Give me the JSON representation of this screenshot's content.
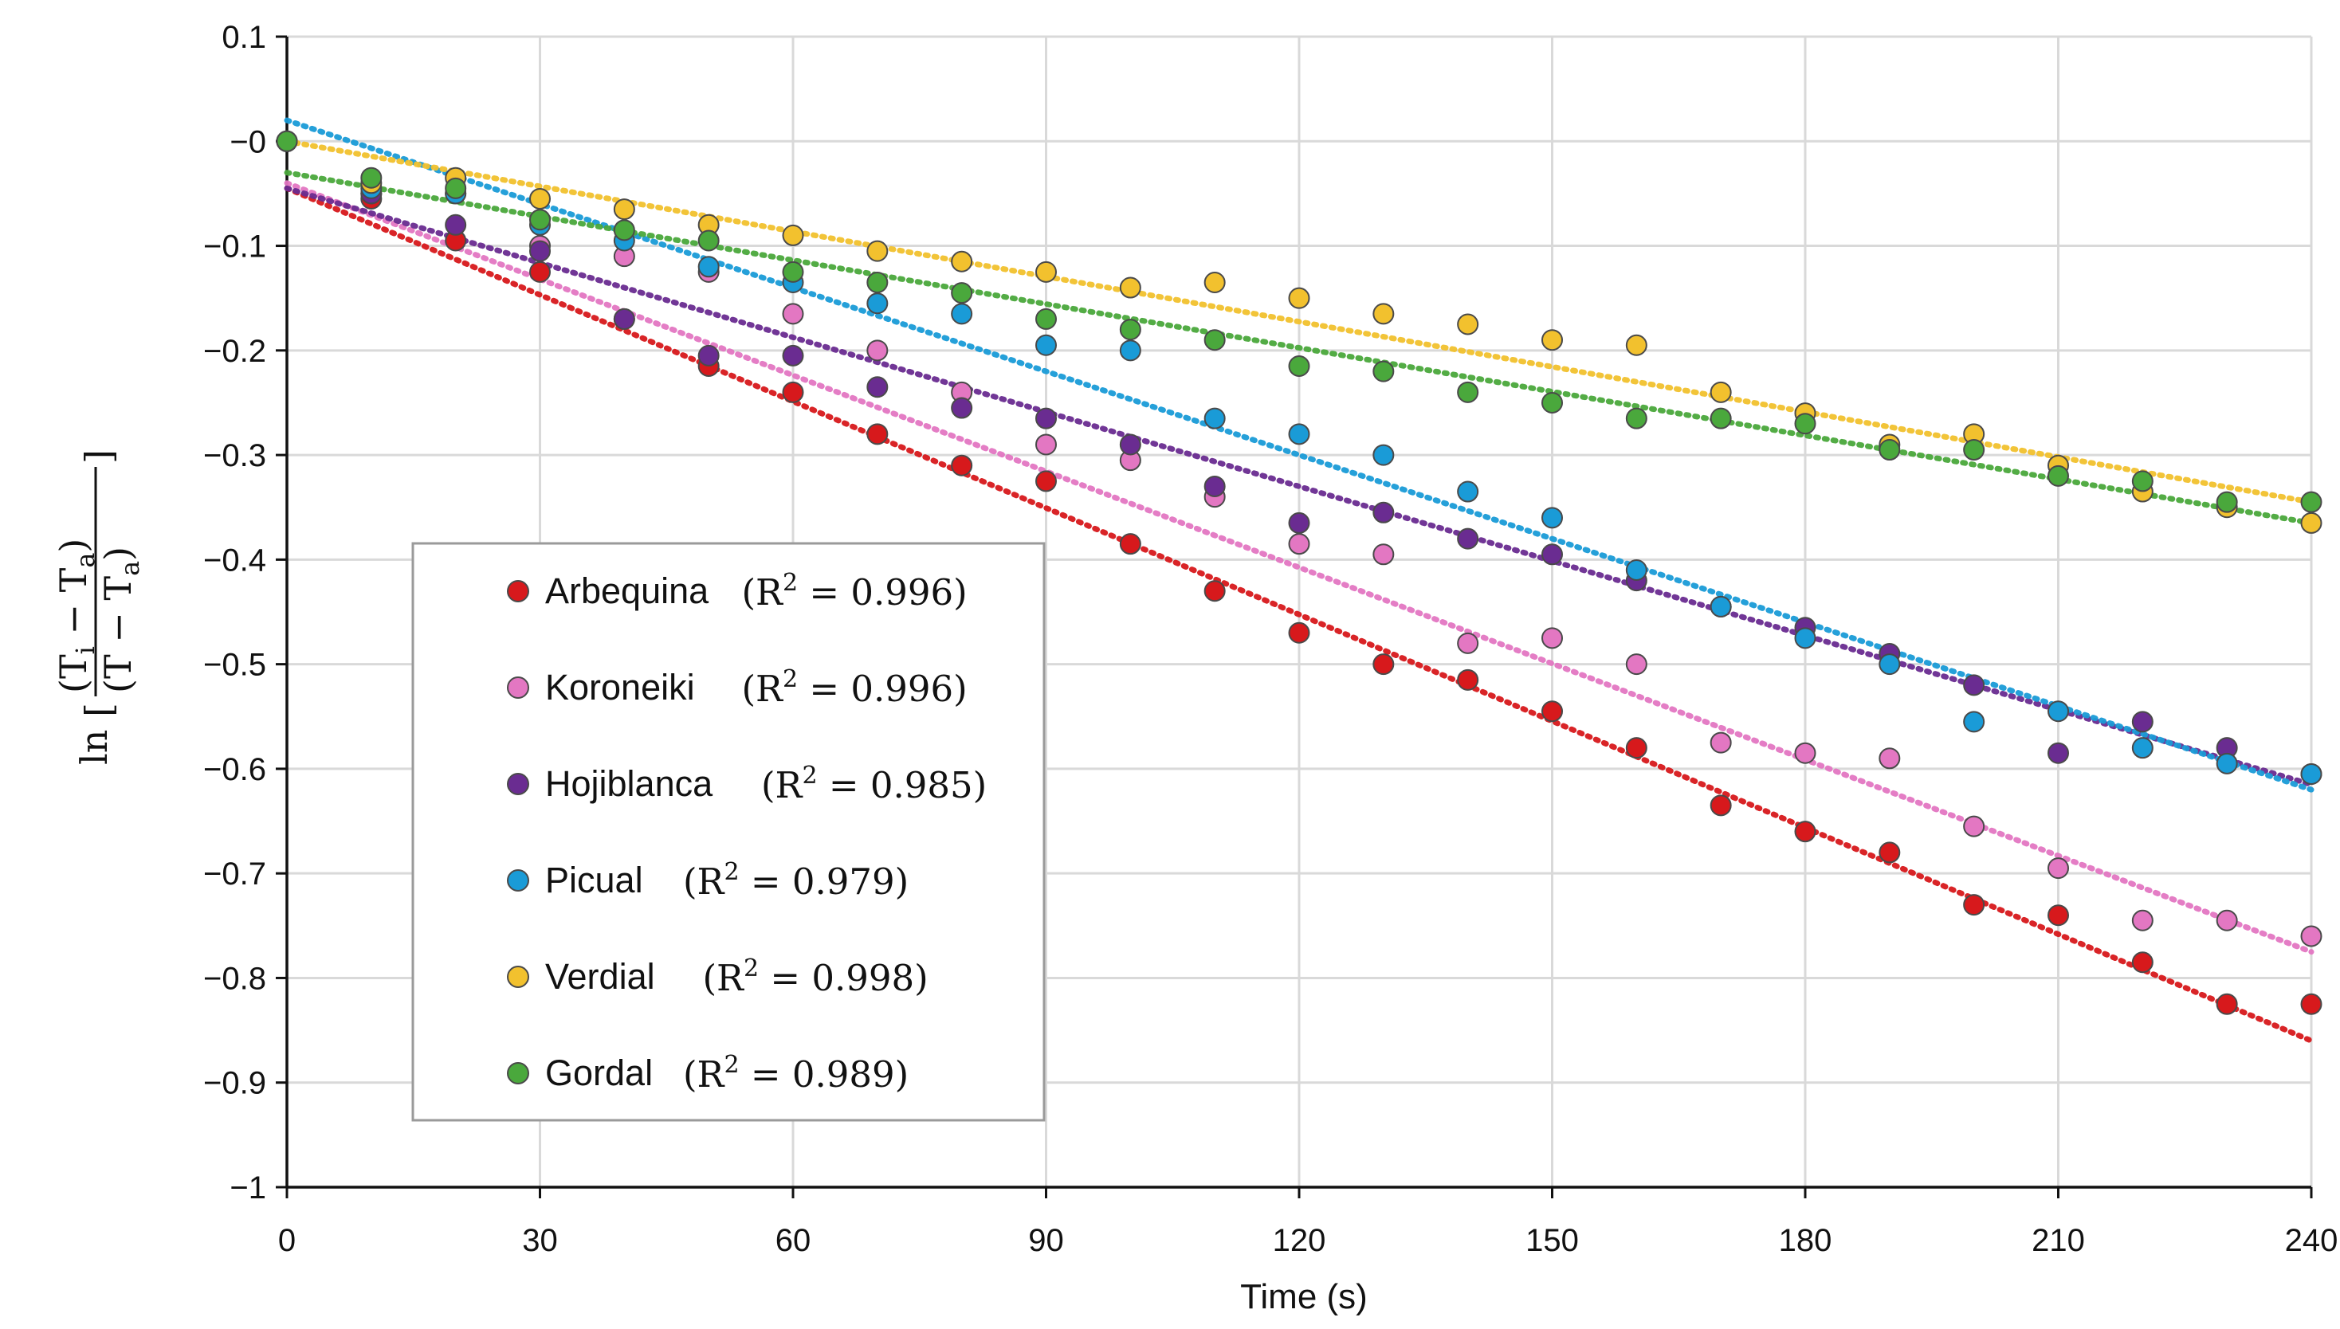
{
  "chart_data": {
    "type": "scatter",
    "title": "",
    "xlabel": "Time (s)",
    "ylabel": {
      "prefix": "ln",
      "numerator": "(T",
      "numerator_sub": "i",
      "numerator_mid": " − T",
      "numerator_sub2": "a",
      "numerator_end": ")",
      "denominator": "(T − T",
      "denominator_sub": "a",
      "denominator_end": ")"
    },
    "xlim": [
      0,
      240
    ],
    "ylim": [
      -1,
      0.1
    ],
    "xticks": [
      0,
      30,
      60,
      90,
      120,
      150,
      180,
      210,
      240
    ],
    "xtick_labels": [
      "0",
      "30",
      "60",
      "90",
      "120",
      "150",
      "180",
      "210",
      "240"
    ],
    "yticks": [
      0.1,
      0,
      -0.1,
      -0.2,
      -0.3,
      -0.4,
      -0.5,
      -0.6,
      -0.7,
      -0.8,
      -0.9,
      -1
    ],
    "ytick_labels": [
      "0.1",
      "−0",
      "−0.1",
      "−0.2",
      "−0.3",
      "−0.4",
      "−0.5",
      "−0.6",
      "−0.7",
      "−0.8",
      "−0.9",
      "−1"
    ],
    "grid": true,
    "legend_position": "lower-left",
    "x": [
      0,
      10,
      20,
      30,
      40,
      50,
      60,
      70,
      80,
      90,
      100,
      110,
      120,
      130,
      140,
      150,
      160,
      170,
      180,
      190,
      200,
      210,
      220,
      230,
      240
    ],
    "series": [
      {
        "name": "Arbequina",
        "r2_label": "(R",
        "r2_sup": "2",
        "r2_value": " = 0.996)",
        "color": "#d7191c",
        "values": [
          0,
          -0.055,
          -0.095,
          -0.125,
          -0.17,
          -0.215,
          -0.24,
          -0.28,
          -0.31,
          -0.325,
          -0.385,
          -0.43,
          -0.47,
          -0.5,
          -0.515,
          -0.545,
          -0.58,
          -0.635,
          -0.66,
          -0.68,
          -0.73,
          -0.74,
          -0.785,
          -0.825,
          -0.825
        ],
        "trend": [
          -0.045,
          -0.86
        ]
      },
      {
        "name": "Koroneiki",
        "r2_label": "(R",
        "r2_sup": "2",
        "r2_value": " = 0.996)",
        "color": "#e377c2",
        "values": [
          0,
          -0.05,
          -0.05,
          -0.1,
          -0.11,
          -0.125,
          -0.165,
          -0.2,
          -0.24,
          -0.29,
          -0.305,
          -0.34,
          -0.385,
          -0.395,
          -0.48,
          -0.475,
          -0.5,
          -0.575,
          -0.585,
          -0.59,
          -0.655,
          -0.695,
          -0.745,
          -0.745,
          -0.76
        ],
        "trend": [
          -0.04,
          -0.775
        ]
      },
      {
        "name": "Hojiblanca",
        "r2_label": "(R",
        "r2_sup": "2",
        "r2_value": " = 0.985)",
        "color": "#6a2c91",
        "values": [
          0,
          -0.05,
          -0.08,
          -0.105,
          -0.17,
          -0.205,
          -0.205,
          -0.235,
          -0.255,
          -0.265,
          -0.29,
          -0.33,
          -0.365,
          -0.355,
          -0.38,
          -0.395,
          -0.42,
          -0.445,
          -0.465,
          -0.49,
          -0.52,
          -0.585,
          -0.555,
          -0.58,
          -0.605
        ],
        "trend": [
          -0.045,
          -0.615
        ]
      },
      {
        "name": "Picual",
        "r2_label": "(R",
        "r2_sup": "2",
        "r2_value": " = 0.979)",
        "color": "#1a9bd7",
        "values": [
          0,
          -0.045,
          -0.05,
          -0.08,
          -0.095,
          -0.12,
          -0.135,
          -0.155,
          -0.165,
          -0.195,
          -0.2,
          -0.265,
          -0.28,
          -0.3,
          -0.335,
          -0.36,
          -0.41,
          -0.445,
          -0.475,
          -0.5,
          -0.555,
          -0.545,
          -0.58,
          -0.595,
          -0.605
        ],
        "trend": [
          0.02,
          -0.62
        ]
      },
      {
        "name": "Verdial",
        "r2_label": "(R",
        "r2_sup": "2",
        "r2_value": " = 0.998)",
        "color": "#f2c12e",
        "values": [
          0,
          -0.04,
          -0.035,
          -0.055,
          -0.065,
          -0.08,
          -0.09,
          -0.105,
          -0.115,
          -0.125,
          -0.14,
          -0.135,
          -0.15,
          -0.165,
          -0.175,
          -0.19,
          -0.195,
          -0.24,
          -0.26,
          -0.29,
          -0.28,
          -0.31,
          -0.335,
          -0.35,
          -0.365
        ],
        "trend": [
          0,
          -0.345
        ]
      },
      {
        "name": "Gordal",
        "r2_label": "(R",
        "r2_sup": "2",
        "r2_value": " = 0.989)",
        "color": "#4aa83c",
        "values": [
          0,
          -0.035,
          -0.045,
          -0.075,
          -0.085,
          -0.095,
          -0.125,
          -0.135,
          -0.145,
          -0.17,
          -0.18,
          -0.19,
          -0.215,
          -0.22,
          -0.24,
          -0.25,
          -0.265,
          -0.265,
          -0.27,
          -0.295,
          -0.295,
          -0.32,
          -0.325,
          -0.345,
          -0.345
        ],
        "trend": [
          -0.03,
          -0.365
        ]
      }
    ]
  }
}
